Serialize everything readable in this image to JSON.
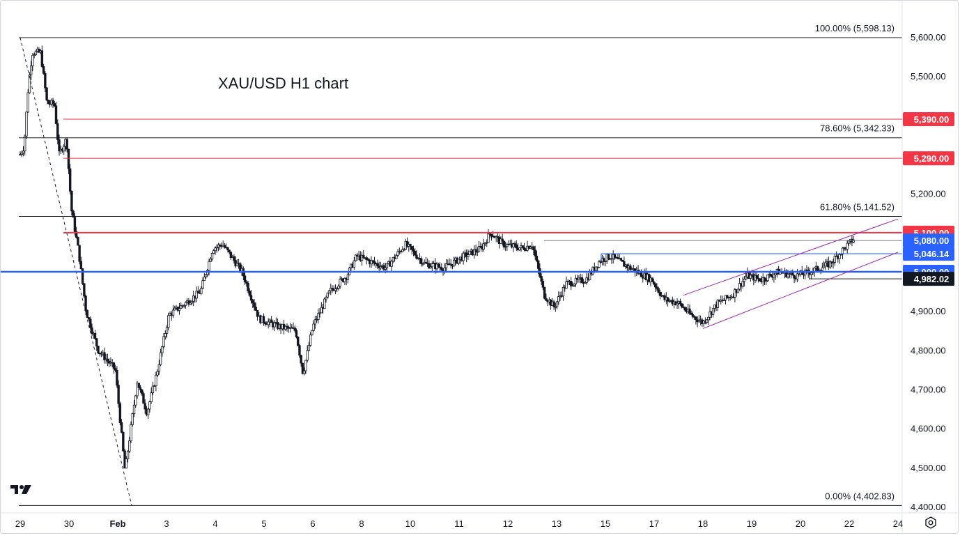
{
  "chart_data": {
    "type": "candlestick",
    "title": "XAU/USD H1 chart",
    "xlabel": "",
    "ylabel": "",
    "ylim": [
      4400,
      5650
    ],
    "y_ticks": [
      "4,400.00",
      "4,500.00",
      "4,600.00",
      "4,700.00",
      "4,800.00",
      "4,900.00",
      "5,000.00",
      "5,100.00",
      "5,200.00",
      "5,300.00",
      "5,400.00",
      "5,500.00",
      "5,600.00"
    ],
    "y_tick_values": [
      4400,
      4500,
      4600,
      4700,
      4800,
      4900,
      5000,
      5100,
      5200,
      5300,
      5400,
      5500,
      5600
    ],
    "x_ticks": [
      {
        "label": "29",
        "bold": false
      },
      {
        "label": "30",
        "bold": false
      },
      {
        "label": "Feb",
        "bold": true
      },
      {
        "label": "3",
        "bold": false
      },
      {
        "label": "4",
        "bold": false
      },
      {
        "label": "5",
        "bold": false
      },
      {
        "label": "6",
        "bold": false
      },
      {
        "label": "8",
        "bold": false
      },
      {
        "label": "10",
        "bold": false
      },
      {
        "label": "11",
        "bold": false
      },
      {
        "label": "12",
        "bold": false
      },
      {
        "label": "13",
        "bold": false
      },
      {
        "label": "15",
        "bold": false
      },
      {
        "label": "17",
        "bold": false
      },
      {
        "label": "18",
        "bold": false
      },
      {
        "label": "19",
        "bold": false
      },
      {
        "label": "20",
        "bold": false
      },
      {
        "label": "22",
        "bold": false
      },
      {
        "label": "24",
        "bold": false
      }
    ],
    "price_path": [
      [
        0,
        5300
      ],
      [
        0.08,
        5320
      ],
      [
        0.17,
        5480
      ],
      [
        0.25,
        5560
      ],
      [
        0.33,
        5560
      ],
      [
        0.42,
        5560
      ],
      [
        0.55,
        5430
      ],
      [
        0.7,
        5430
      ],
      [
        0.8,
        5300
      ],
      [
        0.95,
        5340
      ],
      [
        1.05,
        5160
      ],
      [
        1.2,
        5050
      ],
      [
        1.35,
        4900
      ],
      [
        1.6,
        4800
      ],
      [
        1.95,
        4750
      ],
      [
        2.15,
        4490
      ],
      [
        2.4,
        4720
      ],
      [
        2.6,
        4640
      ],
      [
        2.8,
        4740
      ],
      [
        3.05,
        4890
      ],
      [
        3.5,
        4930
      ],
      [
        3.7,
        4950
      ],
      [
        3.95,
        5060
      ],
      [
        4.15,
        5070
      ],
      [
        4.55,
        5000
      ],
      [
        4.9,
        4880
      ],
      [
        5.3,
        4860
      ],
      [
        5.65,
        4850
      ],
      [
        5.8,
        4740
      ],
      [
        6.0,
        4860
      ],
      [
        6.35,
        4950
      ],
      [
        6.7,
        4990
      ],
      [
        6.9,
        5040
      ],
      [
        7.1,
        5030
      ],
      [
        7.5,
        5010
      ],
      [
        7.9,
        5070
      ],
      [
        8.3,
        5020
      ],
      [
        8.7,
        5010
      ],
      [
        9.1,
        5040
      ],
      [
        9.45,
        5060
      ],
      [
        9.65,
        5100
      ],
      [
        9.9,
        5070
      ],
      [
        10.3,
        5060
      ],
      [
        10.5,
        5070
      ],
      [
        10.75,
        4940
      ],
      [
        10.95,
        4910
      ],
      [
        11.2,
        4970
      ],
      [
        11.6,
        4980
      ],
      [
        11.9,
        5030
      ],
      [
        12.1,
        5040
      ],
      [
        12.5,
        5010
      ],
      [
        12.95,
        4980
      ],
      [
        13.2,
        4930
      ],
      [
        13.5,
        4920
      ],
      [
        13.75,
        4890
      ],
      [
        14.0,
        4870
      ],
      [
        14.3,
        4920
      ],
      [
        14.6,
        4940
      ],
      [
        14.9,
        4990
      ],
      [
        15.2,
        4980
      ],
      [
        15.55,
        5000
      ],
      [
        15.9,
        4990
      ],
      [
        16.2,
        5000
      ],
      [
        16.6,
        5020
      ],
      [
        16.9,
        5060
      ],
      [
        17.1,
        5085
      ]
    ],
    "fib_levels": [
      {
        "label": "100.00% (5,598.13)",
        "value": 5598.13
      },
      {
        "label": "78.60% (5,342.33)",
        "value": 5342.33
      },
      {
        "label": "61.80% (5,141.52)",
        "value": 5141.52
      },
      {
        "label": "0.00% (4,402.83)",
        "value": 4402.83
      }
    ],
    "price_tags": [
      {
        "label": "5,390.00",
        "value": 5390,
        "color": "#f23645",
        "line": "thin"
      },
      {
        "label": "5,290.00",
        "value": 5290,
        "color": "#f23645",
        "line": "thin"
      },
      {
        "label": "5,100.00",
        "value": 5100,
        "color": "#f23645",
        "line": "thick"
      },
      {
        "label": "5,080.00",
        "value": 5080,
        "color": "#2962ff",
        "line": "grey"
      },
      {
        "label": "5,046.14",
        "value": 5046.14,
        "color": "#2962ff",
        "line": "blue"
      },
      {
        "label": "5,000.00",
        "value": 5000,
        "color": "#2962ff",
        "line": "thickblue"
      },
      {
        "label": "4,982.02",
        "value": 4982.02,
        "color": "#131722",
        "line": "black"
      }
    ],
    "channel_color": "#9c27b0",
    "candle_colors": {
      "up": "#131722",
      "down": "#131722"
    }
  },
  "logo_icon": "tradingview-logo-icon",
  "settings_icon": "gear-icon"
}
